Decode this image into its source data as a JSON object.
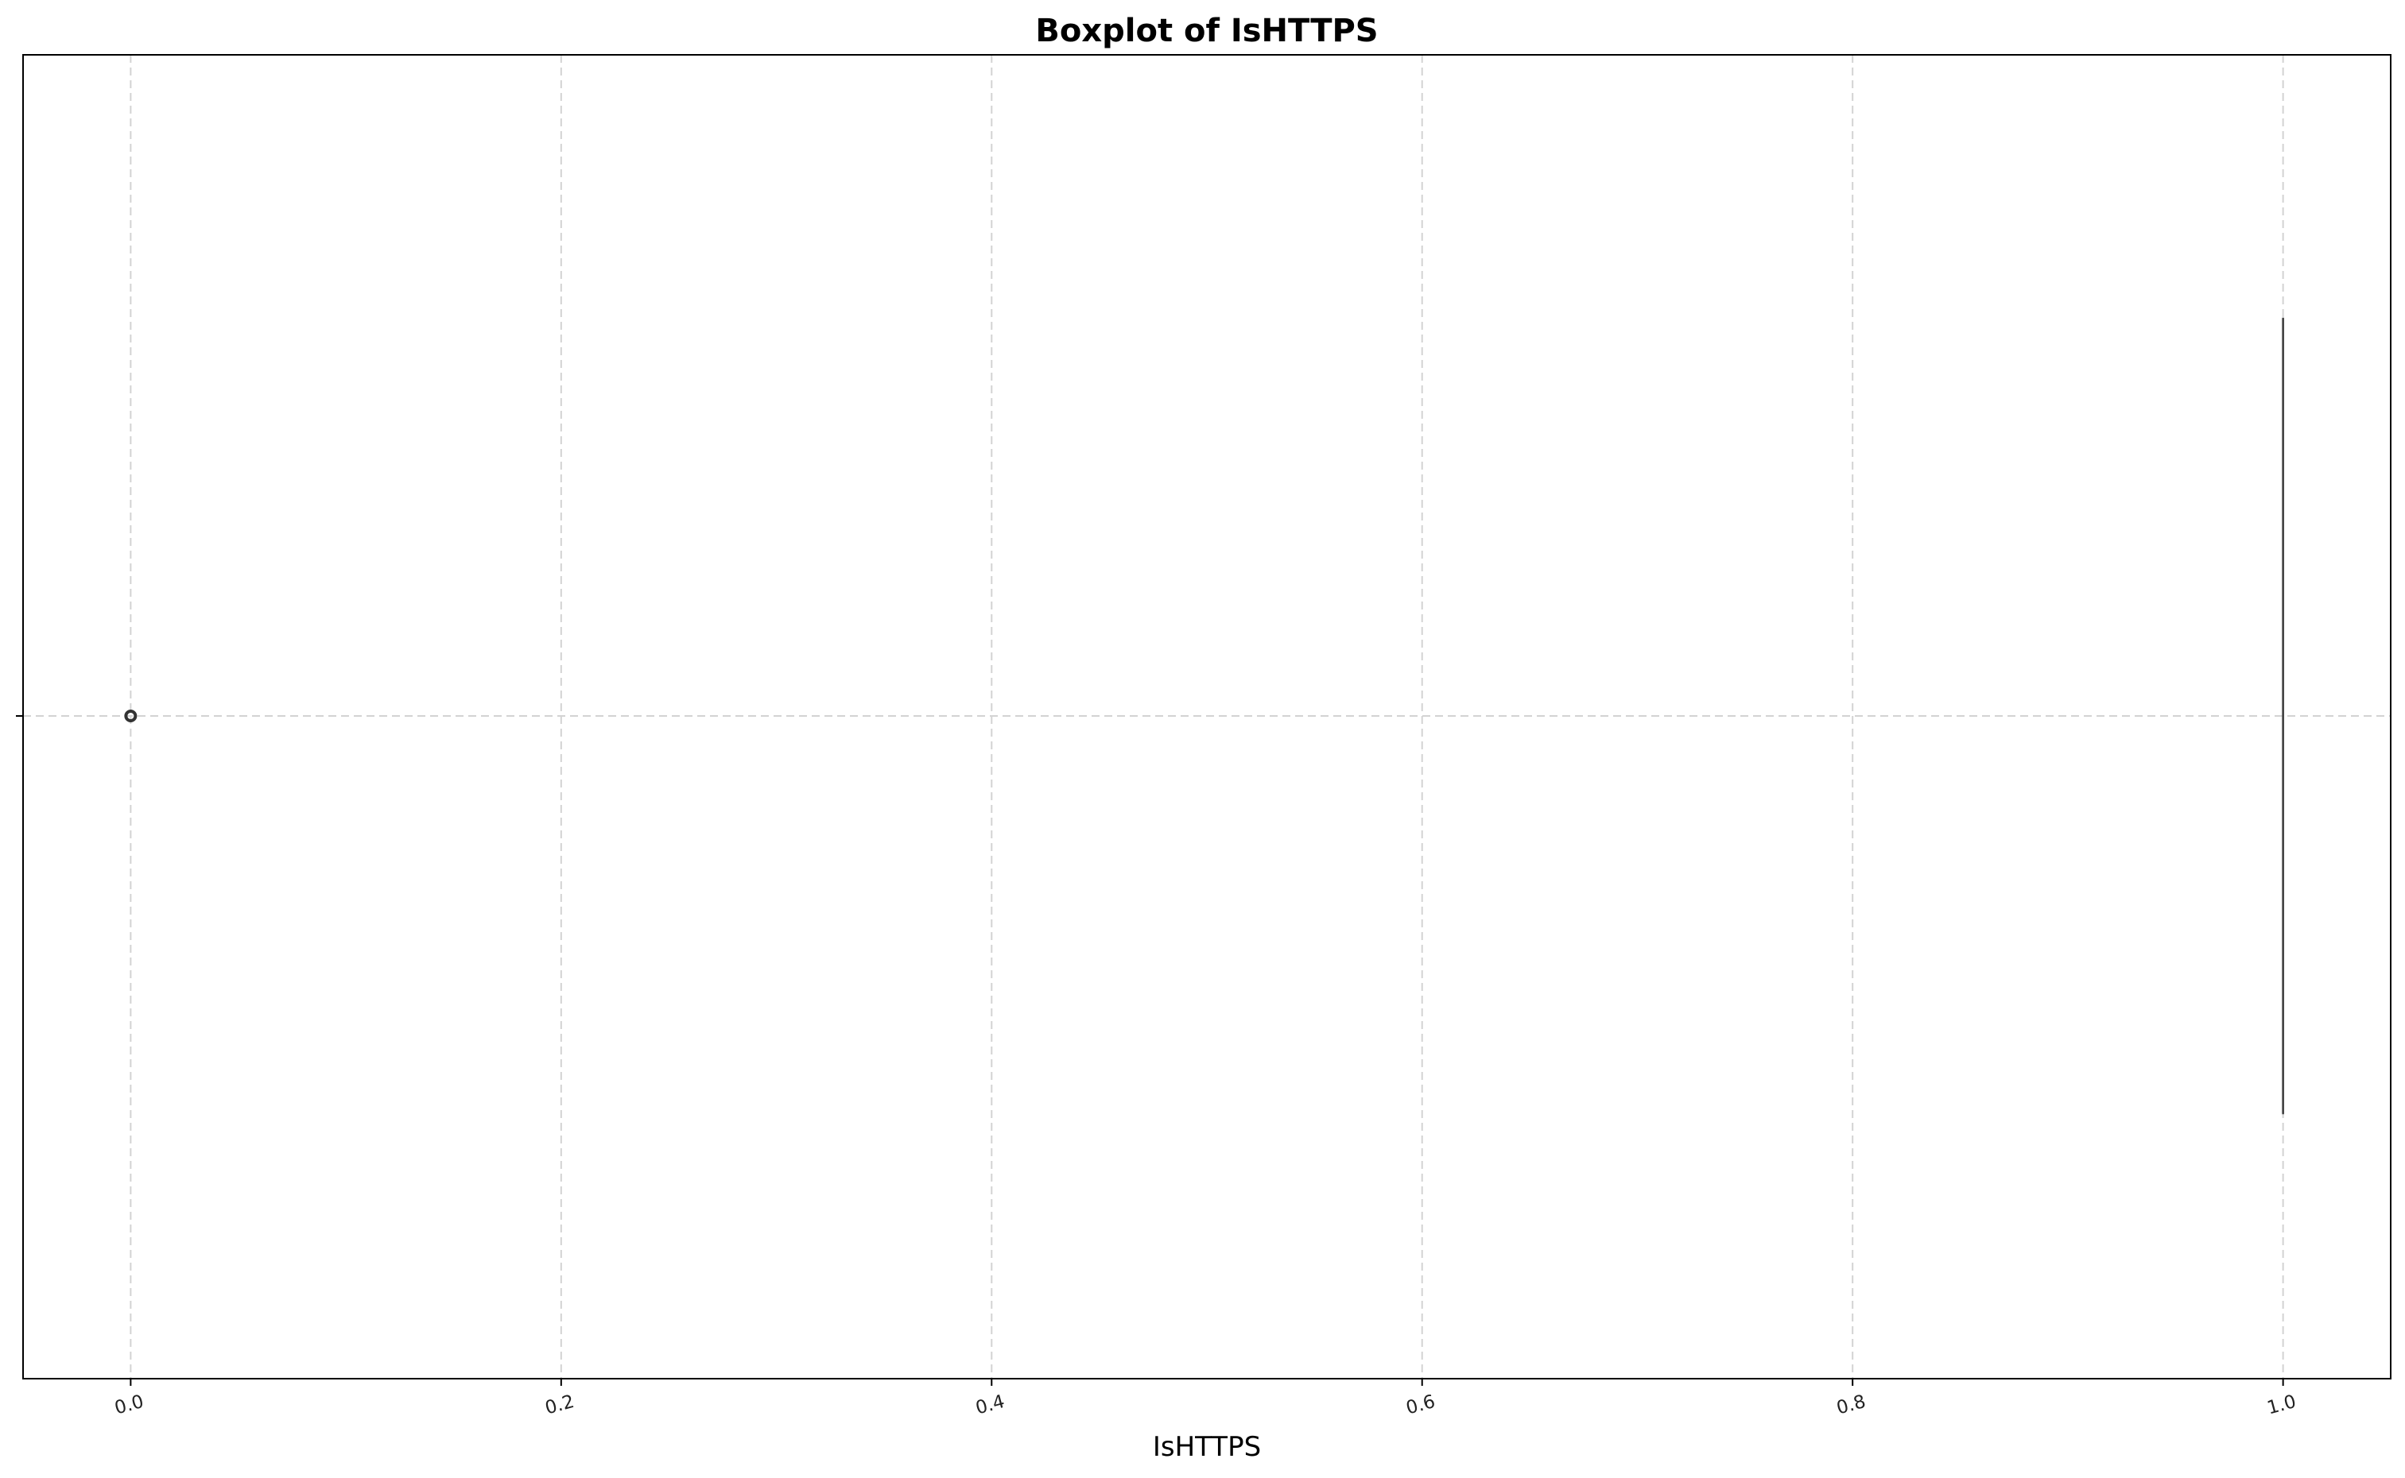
{
  "chart_data": {
    "type": "boxplot",
    "orientation": "horizontal",
    "title": "Boxplot of IsHTTPS",
    "xlabel": "IsHTTPS",
    "ylabel": "",
    "x_ticks": [
      "0.0",
      "0.2",
      "0.4",
      "0.6",
      "0.8",
      "1.0"
    ],
    "x_tick_values": [
      0.0,
      0.2,
      0.4,
      0.6,
      0.8,
      1.0
    ],
    "xlim": [
      -0.05,
      1.05
    ],
    "grid": true,
    "stats": {
      "min": 1.0,
      "q1": 1.0,
      "median": 1.0,
      "q3": 1.0,
      "max": 1.0
    },
    "outliers": [
      0.0
    ],
    "colors": {
      "box": "#444444",
      "grid": "#d3d3d3",
      "flier": "#333333"
    }
  }
}
